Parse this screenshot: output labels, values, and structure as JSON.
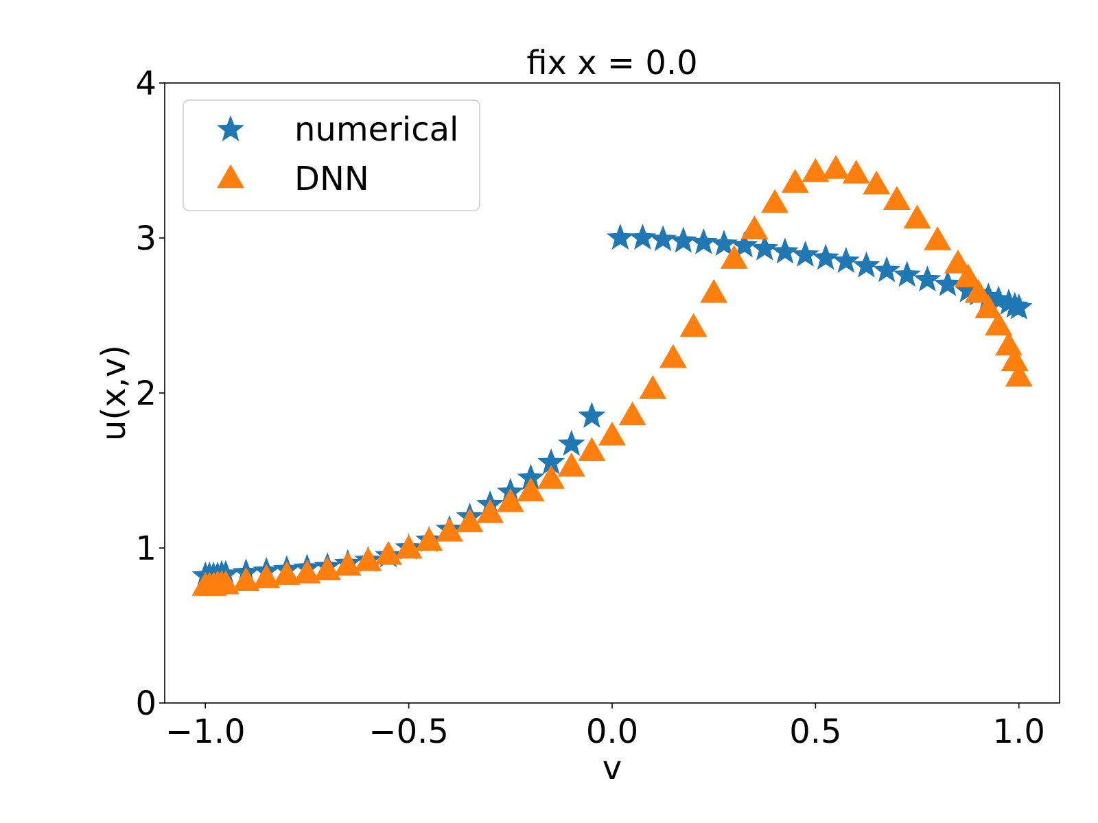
{
  "chart_data": {
    "type": "scatter",
    "title": "fix x = 0.0",
    "xlabel": "v",
    "ylabel": "u(x,v)",
    "xlim": [
      -1.1,
      1.1
    ],
    "ylim": [
      0,
      4
    ],
    "xticks": [
      -1.0,
      -0.5,
      0.0,
      0.5,
      1.0
    ],
    "xtick_labels": [
      "−1.0",
      "−0.5",
      "0.0",
      "0.5",
      "1.0"
    ],
    "yticks": [
      0,
      1,
      2,
      3,
      4
    ],
    "ytick_labels": [
      "0",
      "1",
      "2",
      "3",
      "4"
    ],
    "grid": false,
    "legend_position": "upper-left",
    "colors": {
      "numerical": "#1f77b4",
      "dnn": "#ff7f0e"
    },
    "series": [
      {
        "name": "numerical",
        "marker": "star",
        "x": [
          -1.0,
          -0.99,
          -0.98,
          -0.97,
          -0.96,
          -0.95,
          -0.9,
          -0.85,
          -0.8,
          -0.75,
          -0.7,
          -0.65,
          -0.6,
          -0.55,
          -0.5,
          -0.45,
          -0.4,
          -0.35,
          -0.3,
          -0.25,
          -0.2,
          -0.15,
          -0.1,
          -0.05,
          0.02,
          0.075,
          0.125,
          0.175,
          0.225,
          0.275,
          0.325,
          0.375,
          0.425,
          0.475,
          0.525,
          0.575,
          0.625,
          0.675,
          0.725,
          0.775,
          0.825,
          0.875,
          0.9,
          0.925,
          0.95,
          0.975,
          0.99,
          1.0
        ],
        "y": [
          0.82,
          0.82,
          0.82,
          0.82,
          0.83,
          0.83,
          0.84,
          0.85,
          0.86,
          0.87,
          0.88,
          0.9,
          0.92,
          0.95,
          1.0,
          1.05,
          1.12,
          1.2,
          1.28,
          1.36,
          1.45,
          1.55,
          1.67,
          1.85,
          3.0,
          3.0,
          2.99,
          2.98,
          2.97,
          2.96,
          2.95,
          2.93,
          2.91,
          2.89,
          2.87,
          2.85,
          2.82,
          2.79,
          2.76,
          2.73,
          2.7,
          2.66,
          2.64,
          2.62,
          2.6,
          2.58,
          2.56,
          2.55
        ]
      },
      {
        "name": "DNN",
        "marker": "triangle",
        "x": [
          -1.0,
          -0.99,
          -0.98,
          -0.97,
          -0.96,
          -0.95,
          -0.9,
          -0.85,
          -0.8,
          -0.75,
          -0.7,
          -0.65,
          -0.6,
          -0.55,
          -0.5,
          -0.45,
          -0.4,
          -0.35,
          -0.3,
          -0.25,
          -0.2,
          -0.15,
          -0.1,
          -0.05,
          0.0,
          0.05,
          0.1,
          0.15,
          0.2,
          0.25,
          0.3,
          0.35,
          0.4,
          0.45,
          0.5,
          0.55,
          0.6,
          0.65,
          0.7,
          0.75,
          0.8,
          0.85,
          0.875,
          0.9,
          0.925,
          0.95,
          0.975,
          0.99,
          1.0
        ],
        "y": [
          0.75,
          0.75,
          0.75,
          0.76,
          0.76,
          0.76,
          0.78,
          0.8,
          0.82,
          0.83,
          0.85,
          0.88,
          0.91,
          0.95,
          0.99,
          1.04,
          1.1,
          1.16,
          1.22,
          1.29,
          1.36,
          1.44,
          1.52,
          1.62,
          1.72,
          1.85,
          2.02,
          2.22,
          2.42,
          2.64,
          2.86,
          3.05,
          3.22,
          3.35,
          3.42,
          3.44,
          3.41,
          3.34,
          3.24,
          3.12,
          2.98,
          2.83,
          2.74,
          2.64,
          2.54,
          2.43,
          2.3,
          2.2,
          2.1
        ]
      }
    ]
  }
}
